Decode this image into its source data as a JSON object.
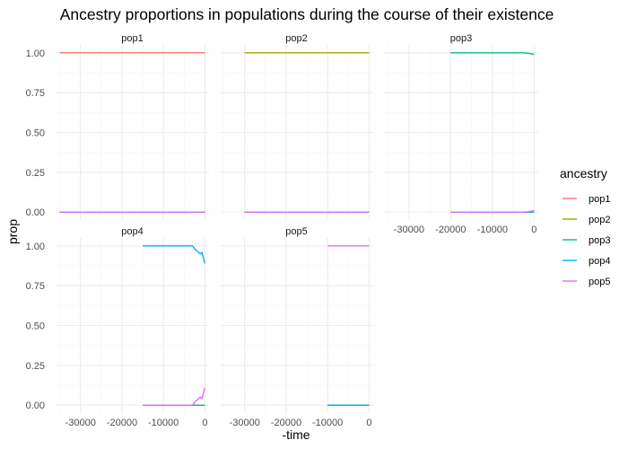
{
  "chart_data": {
    "type": "line",
    "title": "Ancestry proportions in populations during the course of their existence",
    "xlabel": "-time",
    "ylabel": "prop",
    "xlim": [
      -36000,
      1000
    ],
    "ylim": [
      -0.05,
      1.05
    ],
    "xticks": [
      -30000,
      -20000,
      -10000,
      0
    ],
    "xtick_labels": [
      "-30000",
      "-20000",
      "-10000",
      "0"
    ],
    "yticks": [
      0,
      0.25,
      0.5,
      0.75,
      1.0
    ],
    "ytick_labels": [
      "0.00",
      "0.25",
      "0.50",
      "0.75",
      "1.00"
    ],
    "grid": true,
    "legend": {
      "title": "ancestry",
      "position": "right",
      "entries": [
        {
          "name": "pop1",
          "color": "#F8766D"
        },
        {
          "name": "pop2",
          "color": "#A3A500"
        },
        {
          "name": "pop3",
          "color": "#00BF7D"
        },
        {
          "name": "pop4",
          "color": "#00B0F6"
        },
        {
          "name": "pop5",
          "color": "#E76BF3"
        }
      ]
    },
    "panels": [
      {
        "label": "pop1",
        "series": [
          {
            "name": "pop1",
            "x": [
              -35000,
              0
            ],
            "y": [
              1.0,
              1.0
            ]
          },
          {
            "name": "pop2",
            "x": [
              -35000,
              0
            ],
            "y": [
              0.0,
              0.0
            ]
          },
          {
            "name": "pop3",
            "x": [
              -35000,
              0
            ],
            "y": [
              0.0,
              0.0
            ]
          },
          {
            "name": "pop4",
            "x": [
              -35000,
              0
            ],
            "y": [
              0.0,
              0.0
            ]
          },
          {
            "name": "pop5",
            "x": [
              -35000,
              0
            ],
            "y": [
              0.0,
              0.0
            ]
          }
        ]
      },
      {
        "label": "pop2",
        "series": [
          {
            "name": "pop1",
            "x": [
              -30000,
              0
            ],
            "y": [
              0.0,
              0.0
            ]
          },
          {
            "name": "pop2",
            "x": [
              -30000,
              0
            ],
            "y": [
              1.0,
              1.0
            ]
          },
          {
            "name": "pop3",
            "x": [
              -30000,
              0
            ],
            "y": [
              0.0,
              0.0
            ]
          },
          {
            "name": "pop4",
            "x": [
              -30000,
              0
            ],
            "y": [
              0.0,
              0.0
            ]
          },
          {
            "name": "pop5",
            "x": [
              -30000,
              0
            ],
            "y": [
              0.0,
              0.0
            ]
          }
        ]
      },
      {
        "label": "pop3",
        "series": [
          {
            "name": "pop1",
            "x": [
              -20000,
              0
            ],
            "y": [
              0.0,
              0.0
            ]
          },
          {
            "name": "pop2",
            "x": [
              -20000,
              0
            ],
            "y": [
              0.0,
              0.0
            ]
          },
          {
            "name": "pop3",
            "x": [
              -20000,
              -3000,
              -1500,
              -500,
              0
            ],
            "y": [
              1.0,
              1.0,
              0.998,
              0.993,
              0.99
            ]
          },
          {
            "name": "pop4",
            "x": [
              -20000,
              0
            ],
            "y": [
              0.0,
              0.0
            ]
          },
          {
            "name": "pop5",
            "x": [
              -20000,
              -3000,
              -1500,
              -500,
              0
            ],
            "y": [
              0.0,
              0.0,
              0.002,
              0.007,
              0.01
            ]
          }
        ]
      },
      {
        "label": "pop4",
        "series": [
          {
            "name": "pop1",
            "x": [
              -15000,
              0
            ],
            "y": [
              0.0,
              0.0
            ]
          },
          {
            "name": "pop2",
            "x": [
              -15000,
              0
            ],
            "y": [
              0.0,
              0.0
            ]
          },
          {
            "name": "pop3",
            "x": [
              -15000,
              0
            ],
            "y": [
              0.0,
              0.0
            ]
          },
          {
            "name": "pop4",
            "x": [
              -15000,
              -3000,
              -2400,
              -2000,
              -1700,
              -1400,
              -1000,
              -700,
              -400,
              -200,
              0
            ],
            "y": [
              1.0,
              1.0,
              0.98,
              0.97,
              0.965,
              0.955,
              0.95,
              0.96,
              0.93,
              0.91,
              0.89
            ]
          },
          {
            "name": "pop5",
            "x": [
              -15000,
              -3000,
              -2400,
              -2000,
              -1700,
              -1400,
              -1000,
              -700,
              -400,
              -200,
              0
            ],
            "y": [
              0.0,
              0.0,
              0.02,
              0.03,
              0.035,
              0.045,
              0.05,
              0.04,
              0.07,
              0.09,
              0.11
            ]
          }
        ]
      },
      {
        "label": "pop5",
        "series": [
          {
            "name": "pop1",
            "x": [
              -10000,
              0
            ],
            "y": [
              0.0,
              0.0
            ]
          },
          {
            "name": "pop2",
            "x": [
              -10000,
              0
            ],
            "y": [
              0.0,
              0.0
            ]
          },
          {
            "name": "pop3",
            "x": [
              -10000,
              0
            ],
            "y": [
              0.0,
              0.0
            ]
          },
          {
            "name": "pop4",
            "x": [
              -10000,
              0
            ],
            "y": [
              0.0,
              0.0
            ]
          },
          {
            "name": "pop5",
            "x": [
              -10000,
              0
            ],
            "y": [
              1.0,
              1.0
            ]
          }
        ]
      }
    ]
  }
}
